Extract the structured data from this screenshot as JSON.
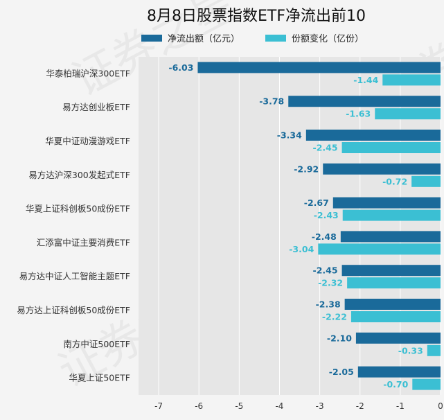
{
  "chart_data": {
    "type": "bar",
    "orientation": "horizontal",
    "title": "8月8日股票指数ETF净流出前10",
    "categories": [
      "华泰柏瑞沪深300ETF",
      "易方达创业板ETF",
      "华夏中证动漫游戏ETF",
      "易方达沪深300发起式ETF",
      "华夏上证科创板50成份ETF",
      "汇添富中证主要消费ETF",
      "易方达中证人工智能主题ETF",
      "易方达上证科创板50成份ETF",
      "南方中证500ETF",
      "华夏上证50ETF"
    ],
    "series": [
      {
        "name": "净流出额（亿元）",
        "color": "#1a6a9a",
        "label_color": "#1a6a9a",
        "values": [
          -6.03,
          -3.78,
          -3.34,
          -2.92,
          -2.67,
          -2.48,
          -2.45,
          -2.38,
          -2.1,
          -2.05
        ]
      },
      {
        "name": "份额变化（亿份）",
        "color": "#3bbfd3",
        "label_color": "#3bbfd3",
        "values": [
          -1.44,
          -1.63,
          -2.45,
          -0.72,
          -2.43,
          -3.04,
          -2.32,
          -2.22,
          -0.33,
          -0.7
        ]
      }
    ],
    "data_labels": [
      [
        "-6.03",
        "-3.78",
        "-3.34",
        "-2.92",
        "-2.67",
        "-2.48",
        "-2.45",
        "-2.38",
        "-2.10",
        "-2.05"
      ],
      [
        "-1.44",
        "-1.63",
        "-2.45",
        "-0.72",
        "-2.43",
        "-3.04",
        "-2.32",
        "-2.22",
        "-0.33",
        "-0.70"
      ]
    ],
    "xlim": [
      -7.5,
      0
    ],
    "xticks": [
      -7,
      -6,
      -5,
      -4,
      -3,
      -2,
      -1,
      0
    ],
    "xtick_labels": [
      "-7",
      "-6",
      "-5",
      "-4",
      "-3",
      "-2",
      "-1",
      "0"
    ],
    "grid": true,
    "legend_position": "top-center",
    "background": "#e6e6e6"
  },
  "watermark": "证券之星"
}
